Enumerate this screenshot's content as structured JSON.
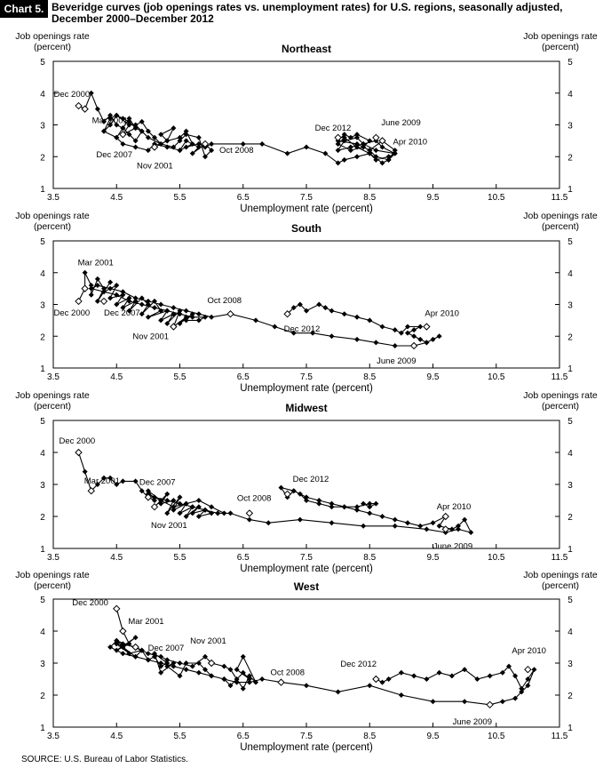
{
  "header": {
    "label": "Chart 5.",
    "title_line1": "Beveridge curves (job openings rates vs. unemployment rates) for U.S. regions, seasonally adjusted,",
    "title_line2": "December 2000–December 2012"
  },
  "source": "SOURCE:  U.S. Bureau of Labor Statistics.",
  "chart_data": [
    {
      "type": "line",
      "title": "Northeast",
      "xlabel": "Unemployment rate (percent)",
      "ylabel_left": [
        "Job openings rate",
        "(percent)"
      ],
      "ylabel_right": [
        "Job openings rate",
        "(percent)"
      ],
      "xlim": [
        3.5,
        11.5
      ],
      "ylim": [
        1,
        5
      ],
      "xticks": [
        "3.5",
        "4.5",
        "5.5",
        "6.5",
        "7.5",
        "8.5",
        "9.5",
        "10.5",
        "11.5"
      ],
      "yticks": [
        "1",
        "2",
        "3",
        "4",
        "5"
      ],
      "series": [
        {
          "x": [
            3.9,
            4.0,
            4.1,
            4.2,
            4.3,
            4.4,
            4.5,
            4.6,
            4.7,
            4.8,
            4.6,
            4.7,
            4.5,
            4.4,
            4.3,
            4.5,
            4.6,
            4.7,
            4.8,
            4.9,
            4.8,
            4.9,
            5.0,
            5.1,
            5.2,
            5.1,
            5.3,
            5.4,
            5.2,
            5.3,
            5.5,
            5.6,
            5.7,
            5.5,
            5.6,
            5.8,
            5.7,
            5.9,
            6.0,
            5.9,
            5.8,
            5.6,
            5.5,
            5.4,
            5.2,
            5.0,
            4.9,
            4.8,
            4.7,
            4.6,
            4.5,
            4.4,
            4.3,
            4.5,
            4.6,
            4.8,
            5.0,
            5.1,
            5.3,
            5.5,
            5.6,
            5.8,
            5.9,
            6.0,
            6.5,
            6.8,
            7.2,
            7.5,
            7.8,
            8.0,
            8.1,
            8.3,
            8.5,
            8.7,
            8.8,
            8.9,
            8.6,
            8.4,
            8.2,
            8.0,
            8.1,
            8.3,
            8.4,
            8.6,
            8.7,
            8.9,
            8.8,
            8.6,
            8.5,
            8.3,
            8.1,
            8.0,
            8.2,
            8.4,
            8.5,
            8.3,
            8.2,
            8.1,
            8.0,
            8.3,
            8.5,
            8.6,
            8.8,
            8.9,
            8.7,
            8.5
          ],
          "y": [
            3.6,
            3.5,
            4.0,
            3.5,
            3.1,
            3.3,
            3.0,
            2.9,
            3.2,
            2.9,
            2.7,
            3.0,
            3.3,
            3.2,
            2.8,
            2.6,
            2.9,
            2.7,
            2.5,
            2.8,
            3.0,
            3.1,
            2.8,
            2.6,
            2.4,
            2.3,
            2.5,
            2.9,
            2.7,
            2.5,
            2.6,
            2.8,
            2.4,
            2.2,
            2.5,
            2.3,
            2.1,
            2.4,
            2.2,
            2.0,
            2.6,
            2.7,
            2.5,
            2.3,
            2.4,
            2.6,
            2.8,
            2.9,
            3.1,
            3.2,
            3.3,
            3.0,
            2.8,
            2.6,
            2.4,
            2.3,
            2.2,
            2.4,
            2.3,
            2.2,
            2.3,
            2.4,
            2.3,
            2.4,
            2.4,
            2.4,
            2.1,
            2.3,
            2.1,
            1.8,
            1.9,
            2.0,
            2.1,
            1.8,
            1.9,
            2.1,
            2.2,
            2.4,
            2.3,
            2.2,
            2.5,
            2.6,
            2.4,
            2.5,
            2.3,
            2.1,
            2.0,
            1.9,
            2.1,
            2.3,
            2.6,
            2.4,
            2.2,
            2.3,
            2.5,
            2.7,
            2.6,
            2.7,
            2.5,
            2.4,
            2.2,
            2.0,
            1.9,
            2.2,
            2.5,
            2.2
          ]
        }
      ],
      "annotations": [
        {
          "label": "Dec 2000",
          "x": 3.9,
          "y": 3.6
        },
        {
          "label": "Mar 2001",
          "x": 4.0,
          "y": 3.5
        },
        {
          "label": "Dec 2007",
          "x": 4.6,
          "y": 2.7
        },
        {
          "label": "Nov 2001",
          "x": 5.1,
          "y": 2.3
        },
        {
          "label": "Oct 2008",
          "x": 5.9,
          "y": 2.4
        },
        {
          "label": "Dec 2012",
          "x": 8.0,
          "y": 2.6
        },
        {
          "label": "June 2009",
          "x": 8.6,
          "y": 2.6
        },
        {
          "label": "Apr 2010",
          "x": 8.7,
          "y": 2.5
        }
      ]
    },
    {
      "type": "line",
      "title": "South",
      "xlabel": "Unemployment rate (percent)",
      "ylabel_left": [
        "Job openings rate",
        "(percent)"
      ],
      "ylabel_right": [
        "Job openings rate",
        "(percent)"
      ],
      "xlim": [
        3.5,
        11.5
      ],
      "ylim": [
        1,
        5
      ],
      "xticks": [
        "3.5",
        "4.5",
        "5.5",
        "6.5",
        "7.5",
        "8.5",
        "9.5",
        "10.5",
        "11.5"
      ],
      "yticks": [
        "1",
        "2",
        "3",
        "4",
        "5"
      ],
      "series": [
        {
          "x": [
            3.9,
            4.0,
            4.0,
            4.1,
            4.1,
            4.2,
            4.3,
            4.2,
            4.4,
            4.3,
            4.5,
            4.4,
            4.6,
            4.5,
            4.7,
            4.6,
            4.8,
            4.7,
            4.9,
            5.0,
            4.9,
            5.1,
            5.2,
            5.0,
            5.3,
            5.2,
            5.4,
            5.3,
            5.5,
            5.4,
            5.6,
            5.5,
            5.7,
            5.6,
            5.8,
            5.9,
            5.7,
            5.5,
            5.3,
            5.1,
            4.9,
            4.7,
            4.5,
            4.3,
            4.1,
            4.2,
            4.4,
            4.6,
            4.8,
            5.0,
            5.2,
            5.4,
            5.6,
            5.8,
            6.0,
            6.3,
            6.7,
            7.0,
            7.3,
            7.6,
            7.9,
            8.3,
            8.6,
            8.9,
            9.2,
            9.4,
            9.6,
            9.5,
            9.4,
            9.3,
            9.2,
            9.1,
            9.2,
            9.3,
            9.1,
            9.0,
            8.9,
            8.7,
            8.5,
            8.3,
            8.1,
            7.9,
            7.8,
            7.7,
            7.5,
            7.4,
            7.3,
            7.2
          ],
          "y": [
            3.1,
            3.5,
            4.0,
            3.6,
            3.3,
            3.8,
            3.5,
            3.1,
            3.7,
            3.4,
            3.6,
            3.2,
            3.3,
            3.0,
            3.2,
            2.9,
            3.1,
            2.8,
            3.2,
            3.0,
            2.7,
            3.1,
            2.8,
            2.6,
            2.8,
            2.5,
            2.7,
            2.4,
            2.8,
            2.3,
            2.6,
            2.4,
            2.7,
            2.5,
            2.5,
            2.6,
            2.6,
            2.7,
            2.8,
            2.9,
            3.0,
            3.1,
            3.3,
            3.4,
            3.5,
            3.6,
            3.5,
            3.4,
            3.2,
            3.1,
            3.0,
            2.9,
            2.8,
            2.7,
            2.6,
            2.7,
            2.5,
            2.3,
            2.1,
            2.1,
            2.0,
            1.9,
            1.8,
            1.7,
            1.7,
            1.8,
            2.0,
            1.9,
            1.8,
            1.9,
            2.0,
            2.1,
            2.2,
            2.3,
            2.3,
            2.1,
            2.2,
            2.3,
            2.5,
            2.6,
            2.7,
            2.8,
            2.9,
            3.0,
            2.8,
            3.0,
            2.9,
            2.7
          ]
        }
      ],
      "annotations": [
        {
          "label": "Dec 2000",
          "x": 3.9,
          "y": 3.1
        },
        {
          "label": "Mar 2001",
          "x": 4.0,
          "y": 3.5
        },
        {
          "label": "Dec 2007",
          "x": 4.3,
          "y": 3.1
        },
        {
          "label": "Nov 2001",
          "x": 5.4,
          "y": 2.3
        },
        {
          "label": "Oct 2008",
          "x": 6.3,
          "y": 2.7
        },
        {
          "label": "Dec 2012",
          "x": 7.2,
          "y": 2.7
        },
        {
          "label": "June 2009",
          "x": 9.2,
          "y": 1.7
        },
        {
          "label": "Apr 2010",
          "x": 9.4,
          "y": 2.3
        }
      ]
    },
    {
      "type": "line",
      "title": "Midwest",
      "xlabel": "Unemployment rate (percent)",
      "ylabel_left": [
        "Job openings rate",
        "(percent)"
      ],
      "ylabel_right": [
        "Job openings rate",
        "(percent)"
      ],
      "xlim": [
        3.5,
        11.5
      ],
      "ylim": [
        1,
        5
      ],
      "xticks": [
        "3.5",
        "4.5",
        "5.5",
        "6.5",
        "7.5",
        "8.5",
        "9.5",
        "10.5",
        "11.5"
      ],
      "yticks": [
        "1",
        "2",
        "3",
        "4",
        "5"
      ],
      "series": [
        {
          "x": [
            3.9,
            4.0,
            4.1,
            4.2,
            4.3,
            4.4,
            4.5,
            4.6,
            4.8,
            4.9,
            5.0,
            5.1,
            5.0,
            5.2,
            5.1,
            5.3,
            5.2,
            5.4,
            5.3,
            5.5,
            5.4,
            5.6,
            5.5,
            5.7,
            5.6,
            5.8,
            5.7,
            5.9,
            5.8,
            6.0,
            5.9,
            6.1,
            6.2,
            6.0,
            5.8,
            5.6,
            5.4,
            5.2,
            5.0,
            5.1,
            5.3,
            5.5,
            5.7,
            5.9,
            6.1,
            6.3,
            6.6,
            6.9,
            7.4,
            7.9,
            8.4,
            8.9,
            9.4,
            9.7,
            9.9,
            10.1,
            10.0,
            9.9,
            9.8,
            9.6,
            9.7,
            9.5,
            9.3,
            9.1,
            8.9,
            8.7,
            8.5,
            8.3,
            8.1,
            7.9,
            7.7,
            7.5,
            7.4,
            7.3,
            7.2,
            7.1,
            7.3,
            7.5,
            7.7,
            7.9,
            8.1,
            8.3,
            8.5,
            8.6,
            8.5,
            8.4
          ],
          "y": [
            4.0,
            3.4,
            2.8,
            3.0,
            3.2,
            3.2,
            3.0,
            3.1,
            3.1,
            2.8,
            2.6,
            2.5,
            2.8,
            2.5,
            2.3,
            2.7,
            2.4,
            2.5,
            2.1,
            2.6,
            2.2,
            2.4,
            2.1,
            2.3,
            2.0,
            2.3,
            2.1,
            2.2,
            2.0,
            2.1,
            2.2,
            2.1,
            2.1,
            2.3,
            2.5,
            2.4,
            2.3,
            2.5,
            2.7,
            2.6,
            2.5,
            2.4,
            2.3,
            2.2,
            2.1,
            2.1,
            1.9,
            1.8,
            1.9,
            1.8,
            1.7,
            1.7,
            1.6,
            1.5,
            1.6,
            1.5,
            1.9,
            1.7,
            1.6,
            1.7,
            2.0,
            1.8,
            1.7,
            1.8,
            1.9,
            2.0,
            2.1,
            2.2,
            2.3,
            2.3,
            2.4,
            2.5,
            2.7,
            2.8,
            2.6,
            2.9,
            2.8,
            2.6,
            2.5,
            2.4,
            2.3,
            2.3,
            2.4,
            2.4,
            2.3,
            2.4
          ]
        }
      ],
      "annotations": [
        {
          "label": "Dec 2000",
          "x": 3.9,
          "y": 4.0
        },
        {
          "label": "Mar 2001",
          "x": 4.1,
          "y": 2.8
        },
        {
          "label": "Dec 2007",
          "x": 5.0,
          "y": 2.6
        },
        {
          "label": "Nov 2001",
          "x": 5.1,
          "y": 2.3
        },
        {
          "label": "Oct 2008",
          "x": 6.6,
          "y": 2.1
        },
        {
          "label": "Dec 2012",
          "x": 7.2,
          "y": 2.7
        },
        {
          "label": "June 2009",
          "x": 9.7,
          "y": 1.6
        },
        {
          "label": "Apr 2010",
          "x": 9.7,
          "y": 2.0
        }
      ]
    },
    {
      "type": "line",
      "title": "West",
      "xlabel": "Unemployment rate (percent)",
      "ylabel_left": [
        "Job openings rate",
        "(percent)"
      ],
      "ylabel_right": [
        "Job openings rate",
        "(percent)"
      ],
      "xlim": [
        3.5,
        11.5
      ],
      "ylim": [
        1,
        5
      ],
      "xticks": [
        "3.5",
        "4.5",
        "5.5",
        "6.5",
        "7.5",
        "8.5",
        "9.5",
        "10.5",
        "11.5"
      ],
      "yticks": [
        "1",
        "2",
        "3",
        "4",
        "5"
      ],
      "series": [
        {
          "x": [
            4.5,
            4.6,
            4.7,
            4.5,
            4.8,
            4.6,
            4.7,
            4.5,
            4.9,
            4.8,
            4.6,
            4.5,
            4.7,
            4.9,
            5.0,
            5.1,
            5.2,
            5.3,
            5.1,
            5.2,
            5.4,
            5.3,
            5.5,
            5.6,
            5.8,
            5.9,
            6.0,
            6.2,
            6.3,
            6.5,
            6.6,
            6.4,
            6.5,
            6.7,
            6.6,
            6.5,
            6.4,
            6.3,
            6.2,
            6.0,
            5.9,
            5.7,
            5.5,
            5.3,
            5.2,
            5.0,
            4.9,
            4.8,
            4.6,
            4.5,
            4.4,
            4.6,
            4.8,
            5.0,
            5.2,
            5.4,
            5.6,
            5.8,
            6.0,
            6.2,
            6.4,
            6.6,
            6.8,
            7.1,
            7.5,
            8.0,
            8.5,
            9.0,
            9.5,
            10.0,
            10.4,
            10.6,
            10.8,
            10.9,
            11.0,
            11.1,
            11.0,
            10.9,
            10.8,
            10.7,
            10.6,
            10.4,
            10.2,
            10.0,
            9.8,
            9.6,
            9.4,
            9.2,
            9.0,
            8.8,
            8.7,
            8.6
          ],
          "y": [
            4.7,
            4.0,
            3.6,
            3.4,
            3.8,
            3.5,
            3.3,
            3.7,
            3.4,
            3.2,
            3.5,
            3.6,
            3.3,
            3.4,
            3.1,
            3.2,
            2.9,
            3.0,
            3.3,
            2.7,
            3.0,
            2.9,
            2.6,
            3.0,
            3.0,
            2.8,
            2.6,
            2.5,
            2.3,
            2.7,
            2.5,
            2.8,
            3.2,
            2.4,
            2.6,
            2.2,
            2.5,
            2.8,
            2.9,
            3.0,
            3.2,
            2.9,
            3.0,
            3.1,
            3.2,
            3.3,
            3.4,
            3.5,
            3.6,
            3.7,
            3.5,
            3.3,
            3.2,
            3.1,
            3.0,
            2.9,
            2.8,
            2.7,
            2.6,
            2.5,
            2.4,
            2.4,
            2.5,
            2.4,
            2.3,
            2.1,
            2.3,
            2.0,
            1.8,
            1.8,
            1.7,
            1.8,
            1.9,
            2.1,
            2.3,
            2.8,
            2.5,
            2.2,
            2.6,
            2.9,
            2.7,
            2.6,
            2.5,
            2.8,
            2.6,
            2.7,
            2.5,
            2.6,
            2.7,
            2.5,
            2.4,
            2.5
          ]
        }
      ],
      "annotations": [
        {
          "label": "Dec 2000",
          "x": 4.5,
          "y": 4.7
        },
        {
          "label": "Mar 2001",
          "x": 4.6,
          "y": 4.0
        },
        {
          "label": "Dec 2007",
          "x": 4.8,
          "y": 3.5
        },
        {
          "label": "Nov 2001",
          "x": 6.0,
          "y": 3.0
        },
        {
          "label": "Oct 2008",
          "x": 7.1,
          "y": 2.4
        },
        {
          "label": "Dec 2012",
          "x": 8.6,
          "y": 2.5
        },
        {
          "label": "June 2009",
          "x": 10.4,
          "y": 1.7
        },
        {
          "label": "Apr 2010",
          "x": 11.0,
          "y": 2.8
        }
      ]
    }
  ]
}
